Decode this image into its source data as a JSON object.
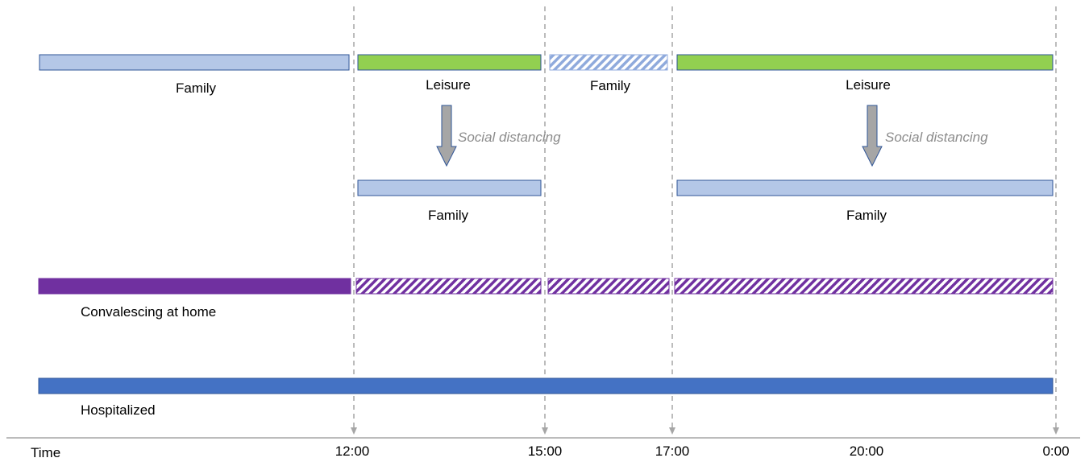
{
  "colors": {
    "family": "#b4c7e7",
    "family_stroke": "#2f5597",
    "leisure": "#92d050",
    "leisure_stroke": "#2f5597",
    "convalescing": "#7030a0",
    "hospitalized": "#4472c4",
    "arrow": "#a6a6a6",
    "arrow_stroke": "#2f5597",
    "guide": "#a6a6a6",
    "note_text": "#8c8c8c"
  },
  "rows": {
    "normal": {
      "family": "Family",
      "leisure_1": "Leisure",
      "family_2": "Family",
      "leisure_2": "Leisure"
    },
    "distancing": {
      "note_1": "Social distancing",
      "note_2": "Social distancing",
      "family_1": "Family",
      "family_2": "Family"
    },
    "convalescing": {
      "label": "Convalescing at home"
    },
    "hospitalized": {
      "label": "Hospitalized"
    }
  },
  "axis": {
    "label": "Time",
    "ticks": [
      "12:00",
      "15:00",
      "17:00",
      "20:00",
      "0:00"
    ]
  }
}
